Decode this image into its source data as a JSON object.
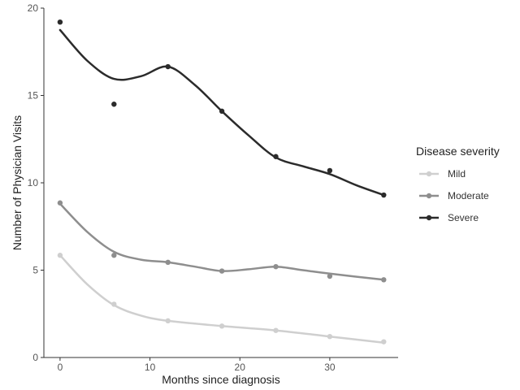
{
  "chart_data": {
    "type": "line",
    "title": "",
    "xlabel": "Months since diagnosis",
    "ylabel": "Number of Physician Visits",
    "xlim": [
      -1.8,
      37.6
    ],
    "ylim": [
      0,
      20
    ],
    "x_ticks": [
      0,
      10,
      20,
      30
    ],
    "y_ticks": [
      0,
      5,
      10,
      15,
      20
    ],
    "grid": false,
    "legend": {
      "title": "Disease severity",
      "position": "right"
    },
    "x": [
      0,
      6,
      12,
      18,
      24,
      30,
      36
    ],
    "series": [
      {
        "name": "Mild",
        "color": "#cfcfcf",
        "values": [
          5.85,
          3.05,
          2.1,
          1.8,
          1.55,
          1.2,
          0.9
        ],
        "smooth": [
          [
            0,
            5.85
          ],
          [
            3,
            4.2
          ],
          [
            6,
            3.0
          ],
          [
            9,
            2.4
          ],
          [
            12,
            2.1
          ],
          [
            18,
            1.8
          ],
          [
            24,
            1.55
          ],
          [
            30,
            1.2
          ],
          [
            36,
            0.85
          ]
        ]
      },
      {
        "name": "Moderate",
        "color": "#8e8e8e",
        "values": [
          8.85,
          5.85,
          5.45,
          4.95,
          5.2,
          4.65,
          4.45
        ],
        "smooth": [
          [
            0,
            8.8
          ],
          [
            3,
            7.2
          ],
          [
            6,
            6.05
          ],
          [
            9,
            5.6
          ],
          [
            12,
            5.45
          ],
          [
            15,
            5.2
          ],
          [
            18,
            4.95
          ],
          [
            21,
            5.05
          ],
          [
            24,
            5.2
          ],
          [
            27,
            5.0
          ],
          [
            30,
            4.8
          ],
          [
            36,
            4.45
          ]
        ]
      },
      {
        "name": "Severe",
        "color": "#2b2b2b",
        "values": [
          19.2,
          14.5,
          16.65,
          14.1,
          11.5,
          10.7,
          9.3
        ],
        "smooth": [
          [
            0,
            18.75
          ],
          [
            3,
            17.0
          ],
          [
            6,
            15.95
          ],
          [
            9,
            16.1
          ],
          [
            12,
            16.65
          ],
          [
            15,
            15.6
          ],
          [
            18,
            14.1
          ],
          [
            21,
            12.7
          ],
          [
            24,
            11.45
          ],
          [
            27,
            10.95
          ],
          [
            30,
            10.5
          ],
          [
            33,
            9.85
          ],
          [
            36,
            9.3
          ]
        ]
      }
    ]
  }
}
